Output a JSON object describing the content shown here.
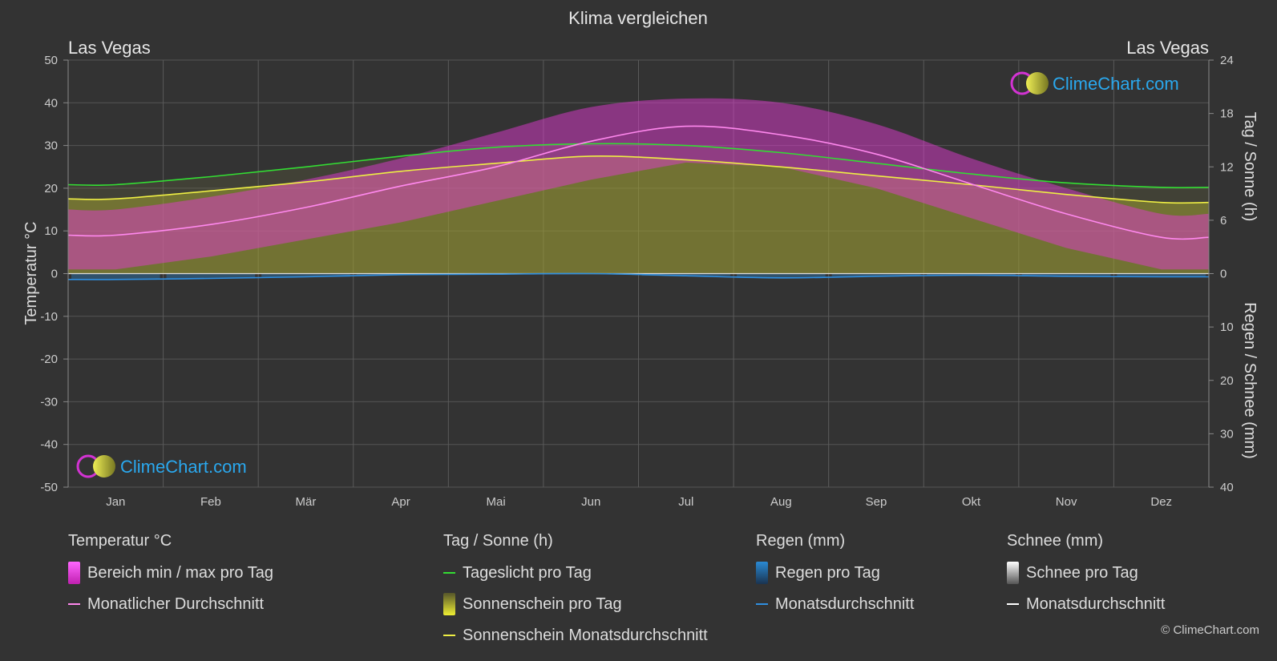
{
  "title": "Klima vergleichen",
  "location_left": "Las Vegas",
  "location_right": "Las Vegas",
  "brand": "ClimeChart.com",
  "copyright": "© ClimeChart.com",
  "chart_data": {
    "type": "area",
    "categories": [
      "Jan",
      "Feb",
      "Mär",
      "Apr",
      "Mai",
      "Jun",
      "Jul",
      "Aug",
      "Sep",
      "Okt",
      "Nov",
      "Dez"
    ],
    "y_left": {
      "label": "Temperatur °C",
      "range": [
        -50,
        50
      ],
      "ticks": [
        50,
        40,
        30,
        20,
        10,
        0,
        -10,
        -20,
        -30,
        -40,
        -50
      ]
    },
    "y_right_top": {
      "label": "Tag / Sonne (h)",
      "range": [
        0,
        24
      ],
      "ticks": [
        24,
        18,
        12,
        6,
        0
      ]
    },
    "y_right_bottom": {
      "label": "Regen / Schnee (mm)",
      "range": [
        0,
        40
      ],
      "ticks": [
        10,
        20,
        30,
        40
      ]
    },
    "grid": true,
    "series": [
      {
        "name": "Bereich min / max pro Tag",
        "kind": "band",
        "axis": "temperature",
        "min": [
          1,
          4,
          8,
          12,
          17,
          22,
          26,
          25,
          20,
          13,
          6,
          1
        ],
        "max": [
          15,
          18,
          22,
          27,
          33,
          39,
          41,
          40,
          35,
          27,
          20,
          14
        ]
      },
      {
        "name": "Monatlicher Durchschnitt",
        "kind": "line",
        "axis": "temperature",
        "values": [
          9,
          11.5,
          15.5,
          20.5,
          25,
          31,
          34.5,
          32.5,
          28,
          21,
          14,
          8.5
        ]
      },
      {
        "name": "Tageslicht pro Tag",
        "kind": "line",
        "axis": "sun_hours",
        "values": [
          10.0,
          10.9,
          12.0,
          13.2,
          14.2,
          14.6,
          14.4,
          13.6,
          12.4,
          11.2,
          10.2,
          9.7
        ]
      },
      {
        "name": "Sonnenschein pro Tag",
        "kind": "area",
        "axis": "sun_hours",
        "values": [
          8.4,
          9.3,
          10.3,
          11.5,
          12.4,
          13.2,
          12.8,
          12.0,
          11.0,
          10.0,
          8.9,
          8.0
        ]
      },
      {
        "name": "Sonnenschein Monatsdurchschnitt",
        "kind": "line",
        "axis": "sun_hours",
        "values": [
          8.4,
          9.3,
          10.3,
          11.5,
          12.4,
          13.2,
          12.8,
          12.0,
          11.0,
          10.0,
          8.9,
          8.0
        ]
      },
      {
        "name": "Regen pro Tag",
        "kind": "bars",
        "axis": "precipitation_mm",
        "values": [
          1.1,
          0.9,
          0.6,
          0.2,
          0.1,
          0.0,
          0.4,
          0.8,
          0.5,
          0.3,
          0.5,
          0.6
        ]
      },
      {
        "name": "Monatsdurchschnitt",
        "kind": "line",
        "axis": "precipitation_mm",
        "values": [
          1.1,
          0.9,
          0.6,
          0.2,
          0.1,
          0.0,
          0.4,
          0.8,
          0.5,
          0.3,
          0.5,
          0.6
        ]
      },
      {
        "name": "Schnee pro Tag",
        "kind": "bars",
        "axis": "precipitation_mm",
        "values": [
          0,
          0,
          0,
          0,
          0,
          0,
          0,
          0,
          0,
          0,
          0,
          0
        ]
      },
      {
        "name": "Monatsdurchschnitt",
        "kind": "line",
        "axis": "precipitation_mm",
        "values": [
          0,
          0,
          0,
          0,
          0,
          0,
          0,
          0,
          0,
          0,
          0,
          0
        ]
      }
    ]
  },
  "legend": {
    "temperature": {
      "title": "Temperatur °C",
      "items": [
        "Bereich min / max pro Tag",
        "Monatlicher Durchschnitt"
      ]
    },
    "sun": {
      "title": "Tag / Sonne (h)",
      "items": [
        "Tageslicht pro Tag",
        "Sonnenschein pro Tag",
        "Sonnenschein Monatsdurchschnitt"
      ]
    },
    "rain": {
      "title": "Regen (mm)",
      "items": [
        "Regen pro Tag",
        "Monatsdurchschnitt"
      ]
    },
    "snow": {
      "title": "Schnee (mm)",
      "items": [
        "Schnee pro Tag",
        "Monatsdurchschnitt"
      ]
    }
  },
  "colors": {
    "background": "#333333",
    "temp_band": "#e03ad0",
    "temp_avg": "#ff88ee",
    "daylight": "#33dd33",
    "sunshine": "#c6c62a",
    "sunshine_avg": "#eeee44",
    "rain": "#2a8ad4",
    "rain_avg": "#2f8fe0",
    "snow_avg": "#ffffff",
    "brand": "#2aa8ee"
  }
}
